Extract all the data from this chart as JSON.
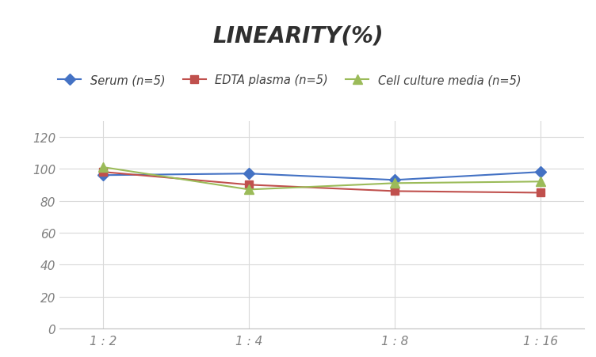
{
  "title": "LINEARITY(%)",
  "x_labels": [
    "1 : 2",
    "1 : 4",
    "1 : 8",
    "1 : 16"
  ],
  "x_positions": [
    0,
    1,
    2,
    3
  ],
  "series": [
    {
      "label": "Serum (n=5)",
      "values": [
        96,
        97,
        93,
        98
      ],
      "color": "#4472C4",
      "marker": "D",
      "marker_size": 7
    },
    {
      "label": "EDTA plasma (n=5)",
      "values": [
        98,
        90,
        86,
        85
      ],
      "color": "#C0504D",
      "marker": "s",
      "marker_size": 7
    },
    {
      "label": "Cell culture media (n=5)",
      "values": [
        101,
        87,
        91,
        92
      ],
      "color": "#9BBB59",
      "marker": "^",
      "marker_size": 8
    }
  ],
  "ylim": [
    0,
    130
  ],
  "yticks": [
    0,
    20,
    40,
    60,
    80,
    100,
    120
  ],
  "background_color": "#FFFFFF",
  "grid_color": "#D9D9D9",
  "title_fontsize": 20,
  "legend_fontsize": 10.5,
  "tick_fontsize": 11,
  "tick_color": "#808080"
}
